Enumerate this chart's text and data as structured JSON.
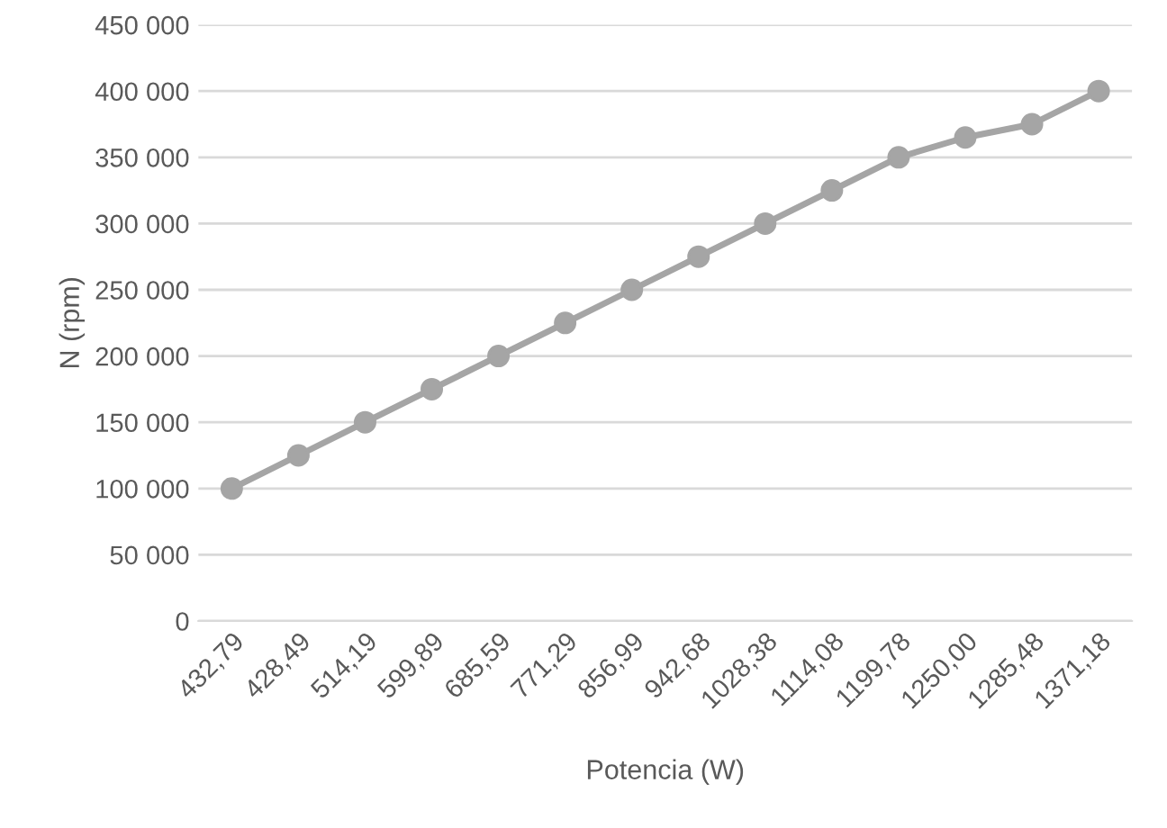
{
  "chart_data": {
    "type": "line",
    "xlabel": "Potencia (W)",
    "ylabel": "N (rpm)",
    "categories": [
      "432,79",
      "428,49",
      "514,19",
      "599,89",
      "685,59",
      "771,29",
      "856,99",
      "942,68",
      "1028,38",
      "1114,08",
      "1199,78",
      "1250,00",
      "1285,48",
      "1371,18"
    ],
    "series": [
      {
        "color": "#a5a5a5",
        "values": [
          100000,
          125000,
          150000,
          175000,
          200000,
          225000,
          250000,
          275000,
          300000,
          325000,
          350000,
          365000,
          375000,
          400000
        ]
      }
    ],
    "ylim": [
      0,
      450000
    ],
    "yticks": [
      0,
      {
        "value": 50000,
        "label": "50 000"
      },
      {
        "value": 100000,
        "label": "100 000"
      },
      {
        "value": 150000,
        "label": "150 000"
      },
      {
        "value": 200000,
        "label": "200 000"
      },
      {
        "value": 250000,
        "label": "250 000"
      },
      {
        "value": 300000,
        "label": "300 000"
      },
      {
        "value": 350000,
        "label": "350 000"
      },
      {
        "value": 400000,
        "label": "400 000"
      },
      {
        "value": 450000,
        "label": "450 000"
      }
    ],
    "grid": "y",
    "marker": "circle",
    "line_style": "solid"
  }
}
